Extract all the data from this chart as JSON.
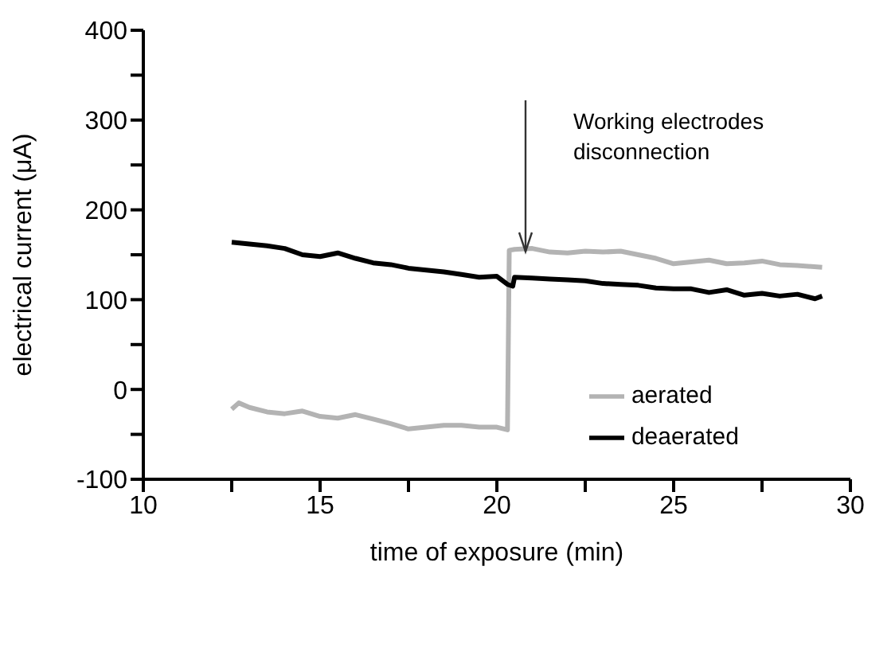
{
  "chart_data": {
    "type": "line",
    "xlabel": "time of exposure (min)",
    "ylabel": "electrical current (μA)",
    "xlim": [
      10,
      30
    ],
    "xticks": [
      10,
      {
        "value": 12.5,
        "label": null
      },
      15,
      {
        "value": 17.5,
        "label": null
      },
      20,
      {
        "value": 22.5,
        "label": null
      },
      25,
      {
        "value": 27.5,
        "label": null
      },
      30
    ],
    "ylim": [
      -100,
      400
    ],
    "yticks": [
      -100,
      {
        "value": -50,
        "label": null
      },
      0,
      {
        "value": 50,
        "label": null
      },
      100,
      {
        "value": 150,
        "label": null
      },
      200,
      {
        "value": 250,
        "label": null
      },
      300,
      {
        "value": 350,
        "label": null
      },
      400
    ],
    "grid": false,
    "legend": "right",
    "line_style": "solid",
    "marker": "none",
    "annotations": [
      "Working electrodes\ndisconnection"
    ],
    "series": [
      {
        "name": "aerated",
        "color": "#b3b3b3",
        "x": [
          12.5,
          12.7,
          13.0,
          13.5,
          14.0,
          14.5,
          15.0,
          15.5,
          16.0,
          16.5,
          17.0,
          17.5,
          18.0,
          18.5,
          19.0,
          19.5,
          20.0,
          20.3,
          20.35,
          20.5,
          21.0,
          21.5,
          22.0,
          22.5,
          23.0,
          23.5,
          24.0,
          24.5,
          25.0,
          25.5,
          26.0,
          26.5,
          27.0,
          27.5,
          28.0,
          28.5,
          29.2
        ],
        "values": [
          -22,
          -15,
          -20,
          -25,
          -27,
          -24,
          -30,
          -32,
          -28,
          -33,
          -38,
          -44,
          -42,
          -40,
          -40,
          -42,
          -42,
          -45,
          155,
          156,
          157,
          153,
          152,
          154,
          153,
          154,
          150,
          146,
          140,
          142,
          144,
          140,
          141,
          143,
          139,
          138,
          136
        ]
      },
      {
        "name": "deaerated",
        "color": "#000000",
        "x": [
          12.5,
          13.0,
          13.5,
          14.0,
          14.5,
          15.0,
          15.5,
          16.0,
          16.5,
          17.0,
          17.5,
          18.0,
          18.5,
          19.0,
          19.5,
          20.0,
          20.3,
          20.45,
          20.5,
          21.0,
          21.5,
          22.0,
          22.5,
          23.0,
          23.5,
          24.0,
          24.5,
          25.0,
          25.5,
          26.0,
          26.5,
          27.0,
          27.5,
          28.0,
          28.5,
          29.0,
          29.2
        ],
        "values": [
          164,
          162,
          160,
          157,
          150,
          148,
          152,
          146,
          141,
          139,
          135,
          133,
          131,
          128,
          125,
          126,
          117,
          115,
          125,
          124,
          123,
          122,
          121,
          118,
          117,
          116,
          113,
          112,
          112,
          108,
          111,
          105,
          107,
          104,
          106,
          101,
          104
        ]
      }
    ]
  }
}
